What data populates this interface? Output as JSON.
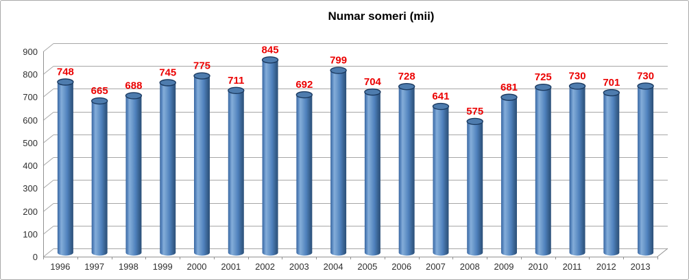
{
  "frame": {
    "border_color": "#a8a8a8",
    "background": "#ffffff"
  },
  "chart_data": {
    "type": "bar",
    "subtype": "3d-cylinder",
    "title": "Numar someri (mii)",
    "title_color": "#000000",
    "xlabel": "",
    "ylabel": "",
    "categories": [
      "1996",
      "1997",
      "1998",
      "1999",
      "2000",
      "2001",
      "2002",
      "2003",
      "2004",
      "2005",
      "2006",
      "2007",
      "2008",
      "2009",
      "2010",
      "2011",
      "2012",
      "2013"
    ],
    "values": [
      748,
      665,
      688,
      745,
      775,
      711,
      845,
      692,
      799,
      704,
      728,
      641,
      575,
      681,
      725,
      730,
      701,
      730
    ],
    "ylim": [
      0,
      900
    ],
    "yticks": [
      0,
      100,
      200,
      300,
      400,
      500,
      600,
      700,
      800,
      900
    ],
    "grid": true,
    "legend": false,
    "data_labels_shown": true,
    "data_label_color": "#eb0000",
    "bar_fill": "#4f81bd",
    "bar_highlight": "#84add9",
    "bar_shadow": "#2b4f78",
    "bar_edge": "#3a67a0",
    "cap_fill": "#4e7cae",
    "cap_stroke": "#1b3a60",
    "gridline_color": "#a6a6a6",
    "axis_line_color": "#909090",
    "axis_text_color": "#2e2e2e"
  }
}
